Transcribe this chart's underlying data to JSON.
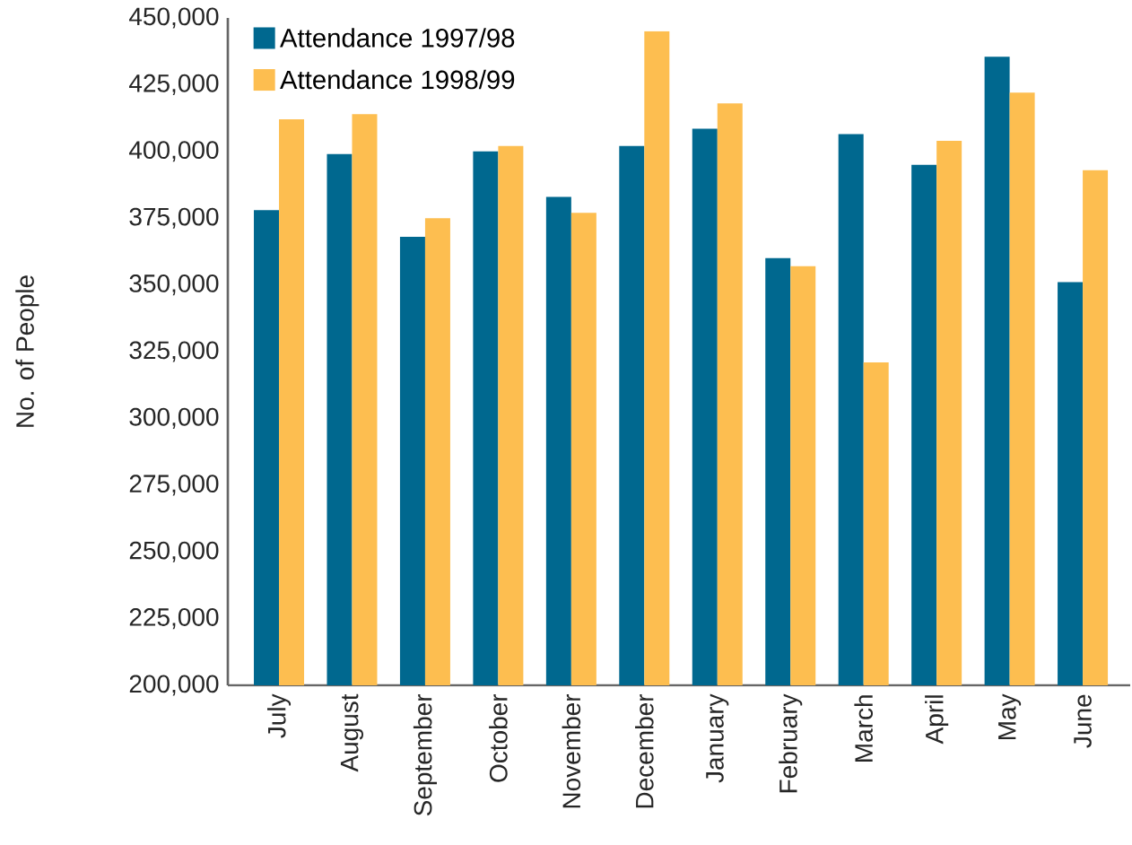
{
  "chart_data": {
    "type": "bar",
    "ylabel": "No. of People",
    "categories": [
      "July",
      "August",
      "September",
      "October",
      "November",
      "December",
      "January",
      "February",
      "March",
      "April",
      "May",
      "June"
    ],
    "series": [
      {
        "name": "Attendance 1997/98",
        "color": "#00688f",
        "values": [
          378000,
          399000,
          368000,
          400000,
          383000,
          402000,
          408500,
          360000,
          406500,
          395000,
          435500,
          351000
        ]
      },
      {
        "name": "Attendance 1998/99",
        "color": "#fdbe50",
        "values": [
          412000,
          414000,
          375000,
          402000,
          377000,
          445000,
          418000,
          357000,
          321000,
          404000,
          422000,
          393000
        ]
      }
    ],
    "ylim": [
      200000,
      450000
    ],
    "yticks": [
      {
        "value": 200000,
        "label": "200,000"
      },
      {
        "value": 225000,
        "label": "225,000"
      },
      {
        "value": 250000,
        "label": "250,000"
      },
      {
        "value": 275000,
        "label": "275,000"
      },
      {
        "value": 300000,
        "label": "300,000"
      },
      {
        "value": 325000,
        "label": "325,000"
      },
      {
        "value": 350000,
        "label": "350,000"
      },
      {
        "value": 375000,
        "label": "375,000"
      },
      {
        "value": 400000,
        "label": "400,000"
      },
      {
        "value": 425000,
        "label": "425,000"
      },
      {
        "value": 450000,
        "label": "450,000"
      }
    ],
    "grid": false,
    "legend": "top left"
  }
}
